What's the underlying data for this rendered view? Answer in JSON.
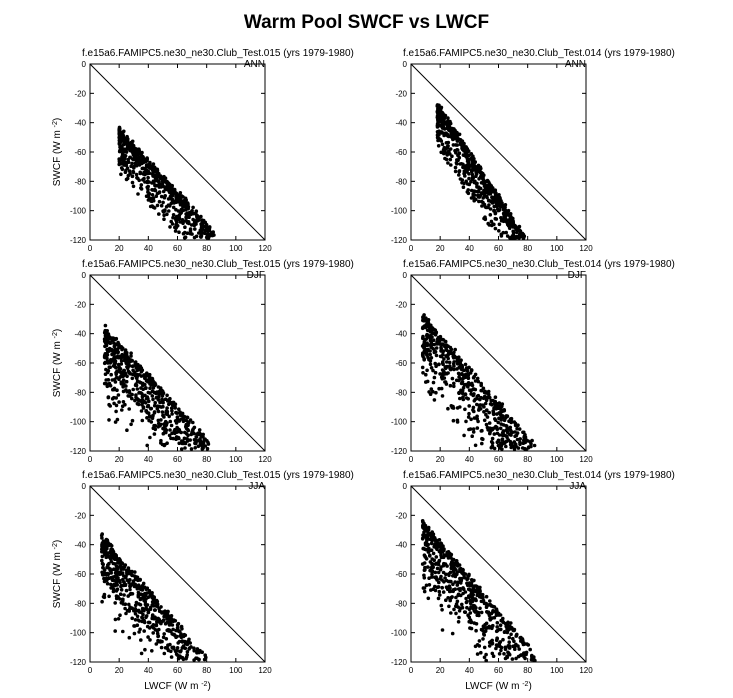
{
  "figure": {
    "title": "Warm Pool SWCF vs LWCF"
  },
  "axes_common": {
    "xlabel": "LWCF (W m",
    "ylabel": "SWCF (W m",
    "unit_sup": "-2",
    "xlim": [
      0,
      120
    ],
    "ylim": [
      -120,
      0
    ],
    "xticks": [
      0,
      20,
      40,
      60,
      80,
      100,
      120
    ],
    "yticks": [
      0,
      -20,
      -40,
      -60,
      -80,
      -100,
      -120
    ],
    "reference_line": "1:1 line from (0,0) to (120,-120)"
  },
  "chart_data": [
    {
      "type": "scatter",
      "title": "f.e15a6.FAMIPC5.ne30_ne30.Club_Test.015 (yrs 1979-1980)",
      "season": "ANN",
      "row": 0,
      "col": 0,
      "cluster": {
        "x_range": [
          20,
          85
        ],
        "y_at_xmin": -45,
        "y_at_xmax": -115
      }
    },
    {
      "type": "scatter",
      "title": "f.e15a6.FAMIPC5.ne30_ne30.Club_Test.014 (yrs 1979-1980)",
      "season": "ANN",
      "row": 0,
      "col": 1,
      "cluster": {
        "x_range": [
          18,
          78
        ],
        "y_at_xmin": -28,
        "y_at_xmax": -118
      }
    },
    {
      "type": "scatter",
      "title": "f.e15a6.FAMIPC5.ne30_ne30.Club_Test.015 (yrs 1979-1980)",
      "season": "DJF",
      "row": 1,
      "col": 0,
      "cluster": {
        "x_range": [
          10,
          82
        ],
        "y_at_xmin": -37,
        "y_at_xmax": -115
      }
    },
    {
      "type": "scatter",
      "title": "f.e15a6.FAMIPC5.ne30_ne30.Club_Test.014 (yrs 1979-1980)",
      "season": "DJF",
      "row": 1,
      "col": 1,
      "cluster": {
        "x_range": [
          8,
          85
        ],
        "y_at_xmin": -28,
        "y_at_xmax": -117
      }
    },
    {
      "type": "scatter",
      "title": "f.e15a6.FAMIPC5.ne30_ne30.Club_Test.015 (yrs 1979-1980)",
      "season": "JJA",
      "row": 2,
      "col": 0,
      "cluster": {
        "x_range": [
          8,
          82
        ],
        "y_at_xmin": -35,
        "y_at_xmax": -120
      }
    },
    {
      "type": "scatter",
      "title": "f.e15a6.FAMIPC5.ne30_ne30.Club_Test.014 (yrs 1979-1980)",
      "season": "JJA",
      "row": 2,
      "col": 1,
      "cluster": {
        "x_range": [
          8,
          85
        ],
        "y_at_xmin": -25,
        "y_at_xmax": -115
      }
    }
  ]
}
